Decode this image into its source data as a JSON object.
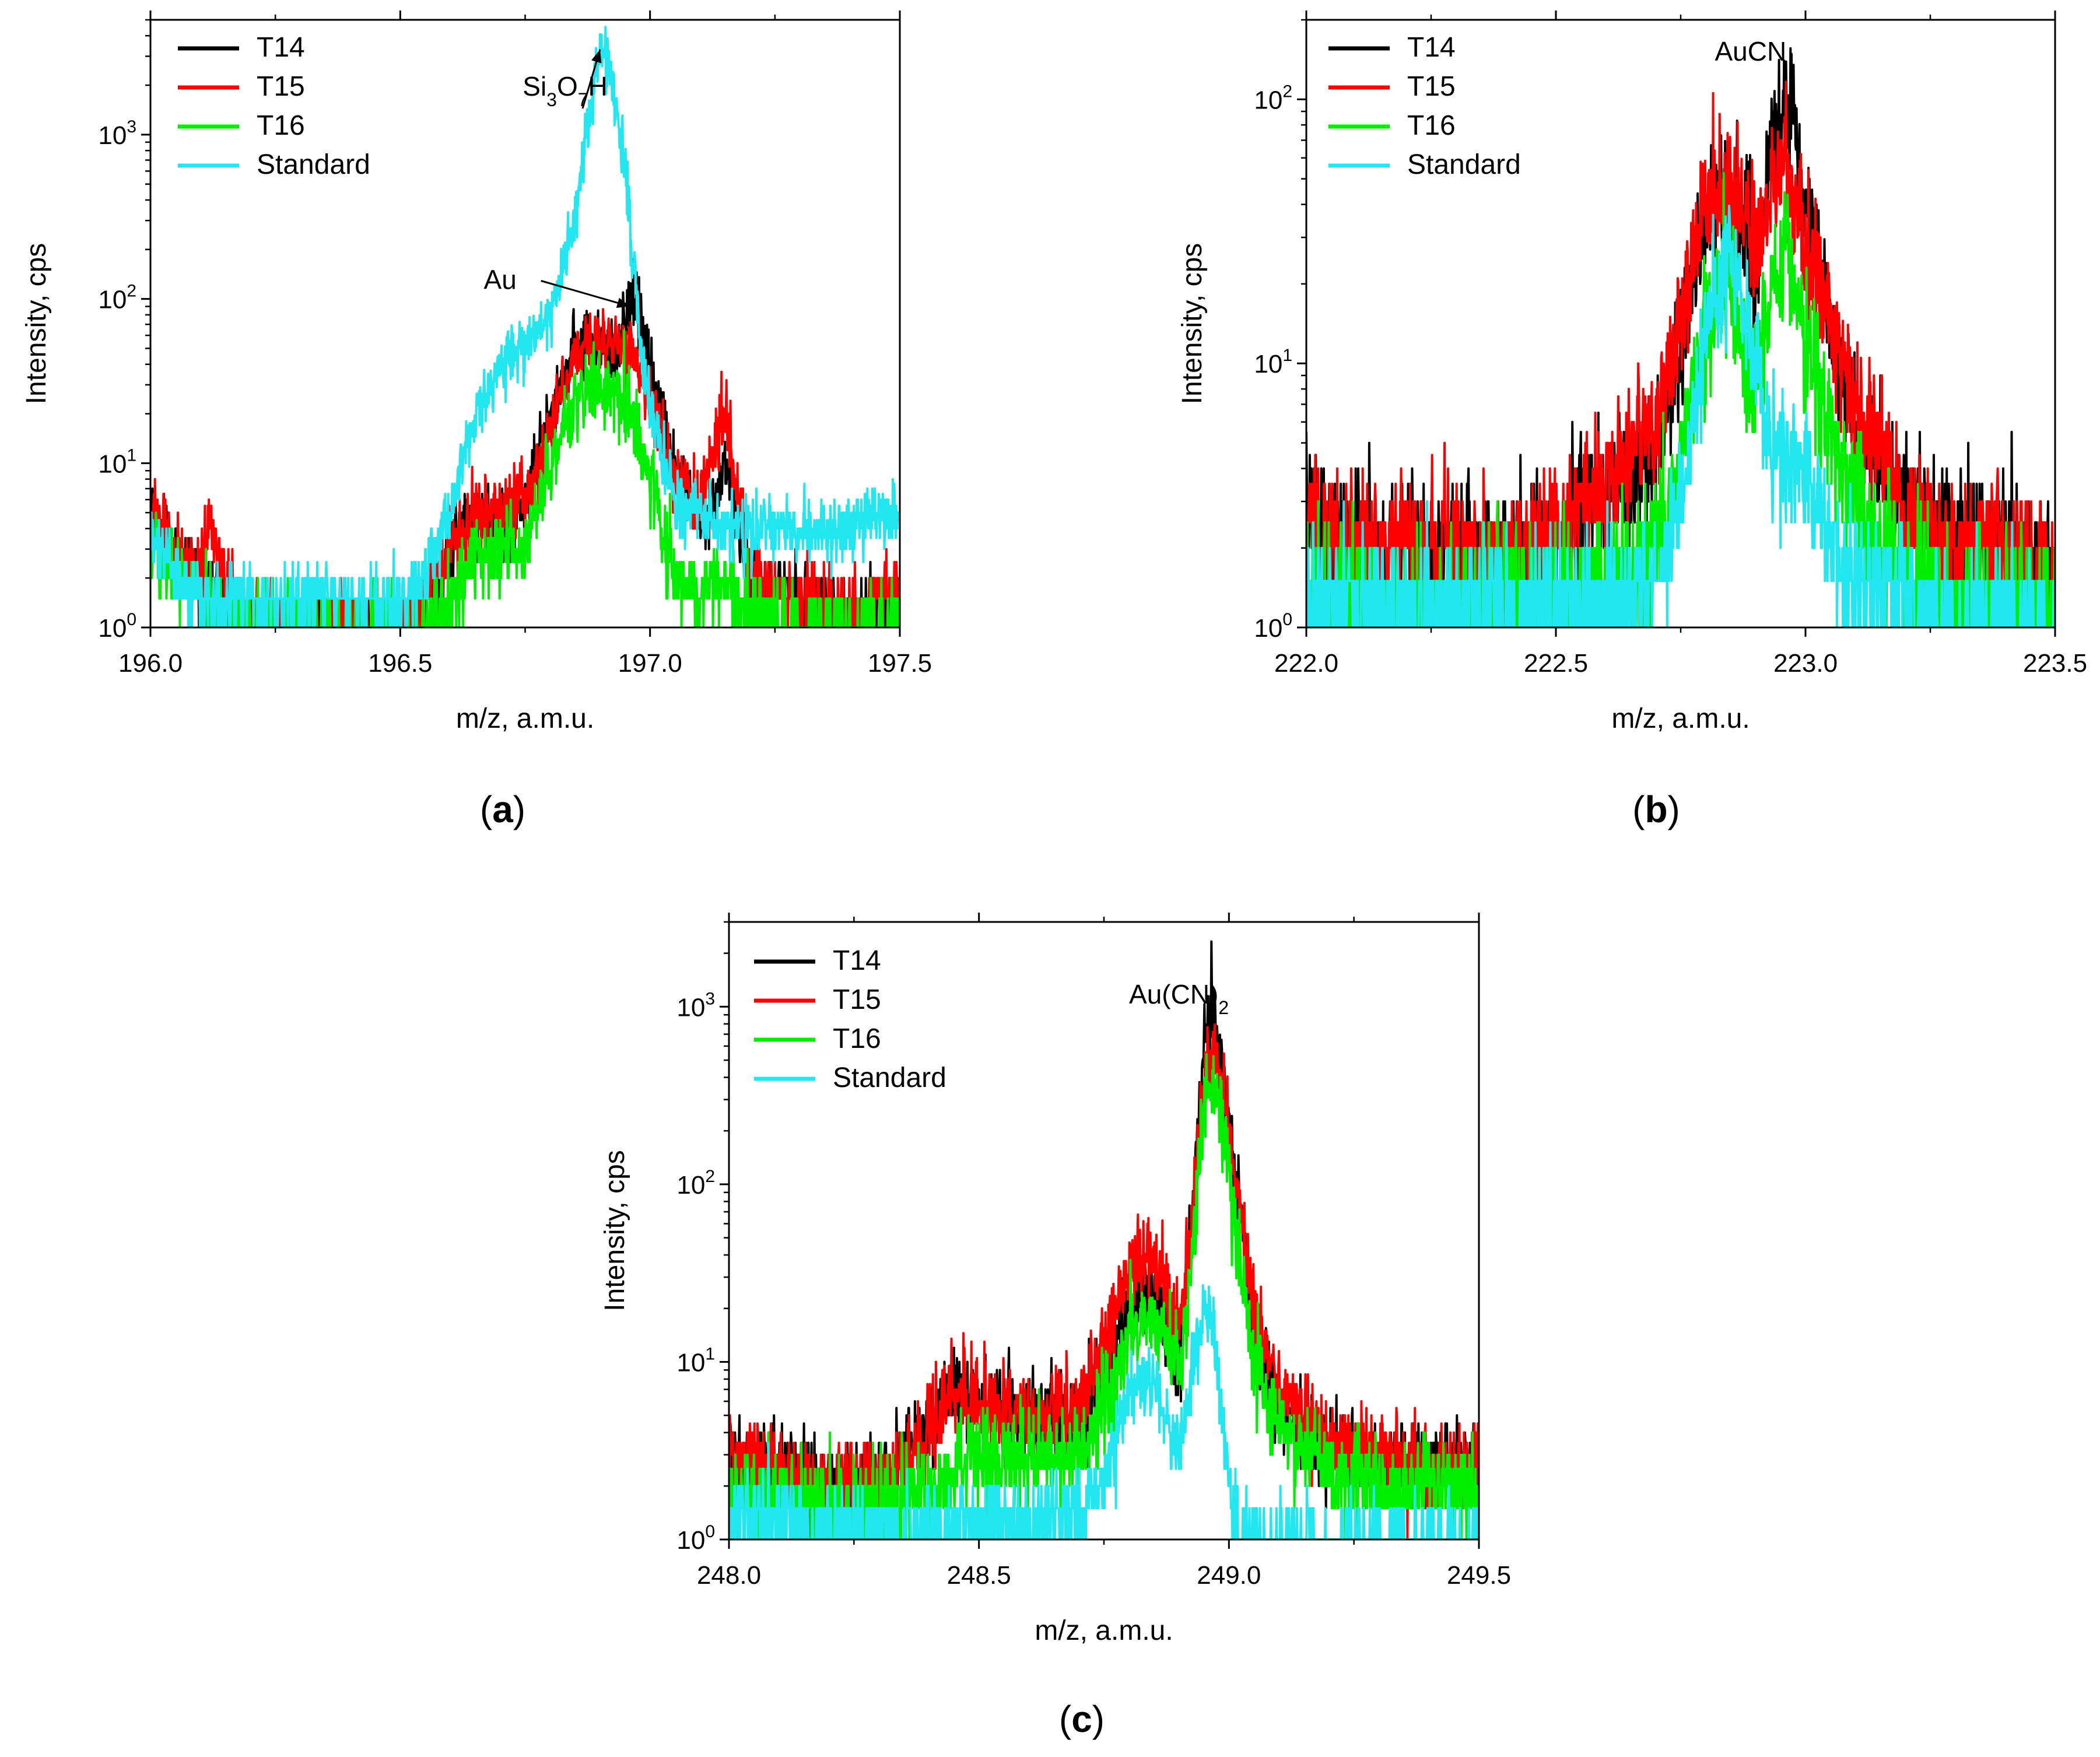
{
  "figure": {
    "panel_labels": {
      "a": "a",
      "b": "b",
      "c": "c"
    }
  },
  "chart_data": [
    {
      "id": "a",
      "type": "line",
      "xlabel": "m/z, a.m.u.",
      "ylabel": "Intensity, cps",
      "yscale": "log",
      "xlim": [
        196.0,
        197.5
      ],
      "ylim": [
        1,
        5000
      ],
      "xticks": [
        196.0,
        196.5,
        197.0,
        197.5
      ],
      "xtick_labels": [
        "196.0",
        "196.5",
        "197.0",
        "197.5"
      ],
      "yticks": [
        1,
        10,
        100,
        1000
      ],
      "ytick_labels": [
        [
          "10",
          "0"
        ],
        [
          "10",
          "1"
        ],
        [
          "10",
          "2"
        ],
        [
          "10",
          "3"
        ]
      ],
      "legend": [
        "T14",
        "T15",
        "T16",
        "Standard"
      ],
      "legend_position": "top-left",
      "annotations": [
        {
          "id": "si3o7h",
          "parts": [
            [
              "Si",
              ""
            ],
            [
              "3",
              "sub"
            ],
            [
              "O",
              ""
            ],
            [
              "7",
              "sub"
            ],
            [
              "H",
              ""
            ]
          ],
          "x": 196.83,
          "y": 9000,
          "arrow_to": [
            196.9,
            3300
          ]
        },
        {
          "id": "au",
          "parts": [
            [
              "Au",
              ""
            ]
          ],
          "x": 196.67,
          "y": 115,
          "arrow_to": [
            196.96,
            90
          ]
        }
      ],
      "series": [
        {
          "name": "T14",
          "color": "#000000",
          "noise": 0.25,
          "x": [
            196.0,
            196.05,
            196.1,
            196.15,
            196.2,
            196.3,
            196.4,
            196.5,
            196.55,
            196.6,
            196.65,
            196.7,
            196.75,
            196.8,
            196.85,
            196.9,
            196.93,
            196.95,
            196.97,
            197.0,
            197.05,
            197.1,
            197.13,
            197.15,
            197.18,
            197.2,
            197.3,
            197.4,
            197.5
          ],
          "values": [
            5,
            3,
            2,
            1.5,
            1,
            1,
            1,
            1,
            1.5,
            3,
            5,
            4,
            6,
            20,
            50,
            55,
            40,
            70,
            90,
            40,
            10,
            4,
            6,
            10,
            4,
            2,
            1.5,
            1.2,
            1.5
          ]
        },
        {
          "name": "T15",
          "color": "#ff0000",
          "noise": 0.25,
          "x": [
            196.0,
            196.05,
            196.1,
            196.12,
            196.15,
            196.2,
            196.3,
            196.4,
            196.5,
            196.55,
            196.6,
            196.65,
            196.7,
            196.75,
            196.8,
            196.85,
            196.9,
            196.95,
            197.0,
            197.05,
            197.1,
            197.13,
            197.15,
            197.18,
            197.2,
            197.3,
            197.4,
            197.5
          ],
          "values": [
            5,
            3,
            2,
            5,
            2,
            1,
            1,
            1,
            1,
            1.5,
            3,
            5,
            5,
            6,
            15,
            45,
            55,
            55,
            25,
            8,
            6,
            12,
            18,
            6,
            2,
            1.5,
            1.2,
            1.8
          ]
        },
        {
          "name": "T16",
          "color": "#00ee00",
          "noise": 0.28,
          "x": [
            196.0,
            196.05,
            196.1,
            196.15,
            196.2,
            196.3,
            196.4,
            196.5,
            196.55,
            196.6,
            196.65,
            196.7,
            196.75,
            196.8,
            196.85,
            196.9,
            196.95,
            197.0,
            197.05,
            197.1,
            197.15,
            197.2,
            197.3,
            197.4,
            197.5
          ],
          "values": [
            3,
            2,
            1.5,
            1.2,
            1,
            1,
            1,
            1,
            1,
            1.5,
            3,
            3,
            3,
            10,
            25,
            30,
            25,
            8,
            2,
            1.5,
            2,
            1.2,
            1,
            1,
            1
          ]
        },
        {
          "name": "Standard",
          "color": "#22e6f0",
          "noise": 0.22,
          "x": [
            196.0,
            196.05,
            196.1,
            196.2,
            196.3,
            196.4,
            196.5,
            196.55,
            196.6,
            196.65,
            196.7,
            196.75,
            196.8,
            196.85,
            196.88,
            196.9,
            196.92,
            196.95,
            196.98,
            197.0,
            197.05,
            197.1,
            197.15,
            197.2,
            197.3,
            197.4,
            197.5
          ],
          "values": [
            4,
            2,
            1.5,
            1.5,
            1.5,
            1.5,
            1.5,
            2,
            5,
            20,
            40,
            50,
            80,
            300,
            1500,
            3300,
            2500,
            600,
            60,
            20,
            6,
            5,
            4,
            4,
            4,
            4,
            5
          ]
        }
      ]
    },
    {
      "id": "b",
      "type": "line",
      "xlabel": "m/z, a.m.u.",
      "ylabel": "Intensity, cps",
      "yscale": "log",
      "xlim": [
        222.0,
        223.5
      ],
      "ylim": [
        1,
        200
      ],
      "xticks": [
        222.0,
        222.5,
        223.0,
        223.5
      ],
      "xtick_labels": [
        "222.0",
        "222.5",
        "223.0",
        "223.5"
      ],
      "yticks": [
        1,
        10,
        100
      ],
      "ytick_labels": [
        [
          "10",
          "0"
        ],
        [
          "10",
          "1"
        ],
        [
          "10",
          "2"
        ]
      ],
      "legend": [
        "T14",
        "T15",
        "T16",
        "Standard"
      ],
      "legend_position": "top-left",
      "annotations": [
        {
          "id": "aucn",
          "parts": [
            [
              "AuCN",
              ""
            ]
          ],
          "x": 222.89,
          "y": 125,
          "arrow_to": null
        }
      ],
      "series": [
        {
          "name": "T14",
          "color": "#000000",
          "noise": 0.3,
          "x": [
            222.0,
            222.1,
            222.2,
            222.3,
            222.4,
            222.5,
            222.6,
            222.7,
            222.75,
            222.8,
            222.85,
            222.88,
            222.9,
            222.93,
            222.96,
            223.0,
            223.05,
            223.1,
            223.2,
            223.3,
            223.4,
            223.5
          ],
          "values": [
            2.5,
            2,
            2,
            2,
            2,
            2.2,
            3,
            5,
            12,
            35,
            40,
            30,
            25,
            60,
            100,
            40,
            15,
            6,
            3,
            2,
            2,
            1.5
          ]
        },
        {
          "name": "T15",
          "color": "#ff0000",
          "noise": 0.3,
          "x": [
            222.0,
            222.1,
            222.2,
            222.3,
            222.4,
            222.5,
            222.6,
            222.7,
            222.75,
            222.8,
            222.85,
            222.88,
            222.9,
            222.93,
            222.96,
            223.0,
            223.05,
            223.1,
            223.2,
            223.3,
            223.4,
            223.5
          ],
          "values": [
            2.5,
            2,
            2,
            2,
            2,
            2.5,
            3.5,
            6,
            15,
            40,
            45,
            35,
            30,
            40,
            50,
            30,
            15,
            7,
            3,
            2,
            2,
            1.5
          ]
        },
        {
          "name": "T16",
          "color": "#00ee00",
          "noise": 0.3,
          "x": [
            222.0,
            222.2,
            222.4,
            222.6,
            222.7,
            222.75,
            222.8,
            222.85,
            222.88,
            222.9,
            222.93,
            222.96,
            223.0,
            223.05,
            223.1,
            223.2,
            223.3,
            223.5
          ],
          "values": [
            1.5,
            1.3,
            1.3,
            1.5,
            2,
            4,
            15,
            20,
            10,
            8,
            20,
            30,
            12,
            5,
            3,
            1.5,
            1.3,
            1.2
          ]
        },
        {
          "name": "Standard",
          "color": "#22e6f0",
          "noise": 0.28,
          "x": [
            222.0,
            222.2,
            222.4,
            222.6,
            222.7,
            222.75,
            222.8,
            222.85,
            222.9,
            222.93,
            222.96,
            223.0,
            223.05,
            223.1,
            223.2,
            223.3,
            223.5
          ],
          "values": [
            1.3,
            1.2,
            1.2,
            1.2,
            1.5,
            3,
            12,
            25,
            10,
            5,
            5,
            4,
            2,
            1.5,
            1.2,
            1.1,
            1.1
          ]
        }
      ]
    },
    {
      "id": "c",
      "type": "line",
      "xlabel": "m/z, a.m.u.",
      "ylabel": "Intensity, cps",
      "yscale": "log",
      "xlim": [
        248.0,
        249.5
      ],
      "ylim": [
        1,
        3000
      ],
      "xticks": [
        248.0,
        248.5,
        249.0,
        249.5
      ],
      "xtick_labels": [
        "248.0",
        "248.5",
        "249.0",
        "249.5"
      ],
      "yticks": [
        1,
        10,
        100,
        1000
      ],
      "ytick_labels": [
        [
          "10",
          "0"
        ],
        [
          "10",
          "1"
        ],
        [
          "10",
          "2"
        ],
        [
          "10",
          "3"
        ]
      ],
      "legend": [
        "T14",
        "T15",
        "T16",
        "Standard"
      ],
      "legend_position": "top-left",
      "annotations": [
        {
          "id": "aucn2",
          "parts": [
            [
              "Au(CN)",
              ""
            ],
            [
              "2",
              "sub"
            ]
          ],
          "x": 248.9,
          "y": 1800,
          "arrow_to": null
        }
      ],
      "series": [
        {
          "name": "T14",
          "color": "#000000",
          "noise": 0.28,
          "x": [
            248.0,
            248.1,
            248.2,
            248.3,
            248.4,
            248.45,
            248.5,
            248.55,
            248.6,
            248.7,
            248.75,
            248.8,
            248.85,
            248.9,
            248.93,
            248.95,
            248.97,
            249.0,
            249.05,
            249.1,
            249.2,
            249.3,
            249.4,
            249.5
          ],
          "values": [
            3,
            2.5,
            2,
            2,
            4,
            7,
            6,
            5,
            5,
            5,
            8,
            20,
            25,
            10,
            100,
            600,
            1000,
            200,
            15,
            5,
            3,
            2.5,
            2.5,
            2.5
          ]
        },
        {
          "name": "T15",
          "color": "#ff0000",
          "noise": 0.28,
          "x": [
            248.0,
            248.1,
            248.2,
            248.3,
            248.4,
            248.45,
            248.5,
            248.55,
            248.6,
            248.7,
            248.75,
            248.8,
            248.85,
            248.9,
            248.93,
            248.95,
            248.97,
            249.0,
            249.05,
            249.1,
            249.2,
            249.3,
            249.4,
            249.5
          ],
          "values": [
            3,
            2.5,
            2,
            2,
            4,
            7,
            6,
            5,
            5,
            6,
            12,
            35,
            40,
            15,
            80,
            400,
            550,
            200,
            20,
            7,
            3.5,
            3,
            2.5,
            2.5
          ]
        },
        {
          "name": "T16",
          "color": "#00ee00",
          "noise": 0.3,
          "x": [
            248.0,
            248.1,
            248.2,
            248.3,
            248.4,
            248.5,
            248.6,
            248.7,
            248.75,
            248.8,
            248.85,
            248.9,
            248.93,
            248.95,
            248.97,
            249.0,
            249.05,
            249.1,
            249.2,
            249.3,
            249.4,
            249.5
          ],
          "values": [
            2,
            1.8,
            1.5,
            1.5,
            2,
            3,
            3,
            3,
            6,
            15,
            20,
            8,
            50,
            300,
            380,
            120,
            10,
            4,
            2.5,
            2,
            2,
            2
          ]
        },
        {
          "name": "Standard",
          "color": "#22e6f0",
          "noise": 0.25,
          "x": [
            248.0,
            248.1,
            248.2,
            248.3,
            248.4,
            248.5,
            248.6,
            248.7,
            248.75,
            248.8,
            248.85,
            248.9,
            248.93,
            248.95,
            248.97,
            249.0,
            249.02,
            249.05,
            249.1,
            249.2,
            249.3,
            249.5
          ],
          "values": [
            1.5,
            1.3,
            1.2,
            1.2,
            1.2,
            1.3,
            1.3,
            1.4,
            2,
            7,
            8,
            3,
            10,
            20,
            15,
            2,
            1.1,
            1,
            1,
            1,
            1,
            1
          ]
        }
      ]
    }
  ]
}
